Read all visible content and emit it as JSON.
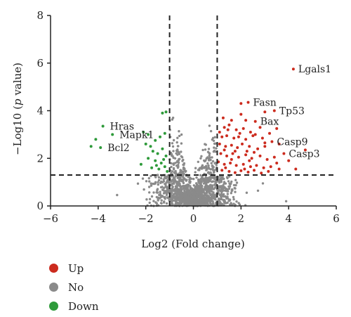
{
  "chart_data": {
    "type": "scatter",
    "title": "",
    "xlabel": "Log2 (Fold change)",
    "ylabel_parts": [
      "−Log10 (",
      "p",
      " value)"
    ],
    "xlim": [
      -6,
      6
    ],
    "ylim": [
      0,
      8
    ],
    "xticks": [
      -6,
      -4,
      -2,
      0,
      2,
      4,
      6
    ],
    "yticks": [
      0,
      2,
      4,
      6,
      8
    ],
    "xtick_labels": [
      "−6",
      "−4",
      "−2",
      "0",
      "2",
      "4",
      "6"
    ],
    "ytick_labels": [
      "0",
      "2",
      "4",
      "6",
      "8"
    ],
    "thresholds": {
      "x": [
        -1,
        1
      ],
      "y": 1.3
    },
    "colors": {
      "Up": "#cc2b1e",
      "No": "#8a8a8a",
      "Down": "#2e9a3a"
    },
    "series": [
      {
        "name": "Up",
        "points": [
          [
            4.2,
            5.75
          ],
          [
            4.7,
            2.35
          ],
          [
            2.0,
            4.3
          ],
          [
            2.3,
            4.35
          ],
          [
            3.0,
            3.95
          ],
          [
            3.4,
            4.0
          ],
          [
            2.2,
            3.6
          ],
          [
            2.6,
            3.55
          ],
          [
            1.3,
            3.3
          ],
          [
            1.5,
            3.4
          ],
          [
            1.8,
            3.2
          ],
          [
            2.1,
            3.25
          ],
          [
            2.4,
            3.1
          ],
          [
            2.8,
            3.3
          ],
          [
            3.2,
            3.05
          ],
          [
            3.5,
            3.25
          ],
          [
            1.2,
            2.9
          ],
          [
            1.4,
            2.95
          ],
          [
            1.7,
            2.85
          ],
          [
            1.9,
            2.9
          ],
          [
            2.2,
            2.8
          ],
          [
            2.5,
            2.95
          ],
          [
            2.9,
            2.85
          ],
          [
            3.3,
            2.7
          ],
          [
            3.6,
            2.6
          ],
          [
            1.1,
            2.6
          ],
          [
            1.35,
            2.5
          ],
          [
            1.6,
            2.55
          ],
          [
            1.85,
            2.45
          ],
          [
            2.05,
            2.6
          ],
          [
            2.35,
            2.5
          ],
          [
            2.7,
            2.4
          ],
          [
            3.0,
            2.5
          ],
          [
            3.8,
            2.2
          ],
          [
            1.15,
            2.2
          ],
          [
            1.4,
            2.1
          ],
          [
            1.65,
            2.2
          ],
          [
            1.9,
            2.05
          ],
          [
            2.2,
            2.15
          ],
          [
            2.45,
            2.0
          ],
          [
            2.8,
            2.1
          ],
          [
            3.1,
            1.95
          ],
          [
            3.4,
            2.05
          ],
          [
            4.0,
            1.9
          ],
          [
            1.05,
            1.85
          ],
          [
            1.3,
            1.75
          ],
          [
            1.55,
            1.8
          ],
          [
            1.8,
            1.7
          ],
          [
            2.1,
            1.75
          ],
          [
            2.4,
            1.65
          ],
          [
            2.65,
            1.7
          ],
          [
            2.95,
            1.6
          ],
          [
            3.25,
            1.65
          ],
          [
            3.6,
            1.55
          ],
          [
            1.2,
            1.5
          ],
          [
            1.5,
            1.45
          ],
          [
            1.75,
            1.4
          ],
          [
            2.0,
            1.48
          ],
          [
            2.3,
            1.42
          ],
          [
            2.55,
            1.5
          ],
          [
            2.85,
            1.38
          ],
          [
            3.15,
            1.45
          ],
          [
            1.25,
            3.7
          ],
          [
            1.6,
            3.6
          ],
          [
            2.0,
            3.85
          ],
          [
            1.1,
            3.1
          ],
          [
            1.45,
            3.2
          ],
          [
            1.95,
            3.05
          ],
          [
            2.6,
            3.0
          ],
          [
            3.0,
            2.65
          ],
          [
            1.3,
            2.35
          ],
          [
            1.75,
            2.3
          ],
          [
            2.25,
            2.3
          ],
          [
            2.55,
            2.25
          ],
          [
            1.6,
            1.95
          ],
          [
            2.35,
            1.9
          ],
          [
            1.35,
            1.6
          ],
          [
            2.15,
            1.55
          ],
          [
            3.5,
            1.8
          ],
          [
            4.3,
            1.55
          ]
        ]
      },
      {
        "name": "Down",
        "points": [
          [
            -4.1,
            2.8
          ],
          [
            -3.8,
            3.35
          ],
          [
            -4.3,
            2.5
          ],
          [
            -3.9,
            2.45
          ],
          [
            -3.4,
            3.0
          ],
          [
            -1.3,
            3.9
          ],
          [
            -1.15,
            3.95
          ],
          [
            -2.1,
            3.1
          ],
          [
            -1.9,
            3.0
          ],
          [
            -2.0,
            2.6
          ],
          [
            -1.8,
            2.5
          ],
          [
            -1.6,
            2.75
          ],
          [
            -1.4,
            2.9
          ],
          [
            -1.2,
            3.05
          ],
          [
            -1.7,
            2.3
          ],
          [
            -1.5,
            2.2
          ],
          [
            -1.3,
            2.4
          ],
          [
            -1.15,
            2.1
          ],
          [
            -1.9,
            2.0
          ],
          [
            -1.6,
            1.9
          ],
          [
            -1.35,
            1.8
          ],
          [
            -1.2,
            1.65
          ],
          [
            -1.75,
            1.6
          ],
          [
            -1.45,
            1.55
          ],
          [
            -2.2,
            1.75
          ],
          [
            -1.1,
            1.45
          ],
          [
            -1.55,
            1.7
          ],
          [
            -1.25,
            1.95
          ]
        ]
      }
    ],
    "labeled_genes": [
      {
        "name": "Lgals1",
        "x": 4.2,
        "y": 5.75
      },
      {
        "name": "Fasn",
        "x": 2.3,
        "y": 4.35
      },
      {
        "name": "Tp53",
        "x": 3.4,
        "y": 4.0
      },
      {
        "name": "Bax",
        "x": 2.6,
        "y": 3.55
      },
      {
        "name": "Casp9",
        "x": 3.3,
        "y": 2.7
      },
      {
        "name": "Casp3",
        "x": 3.8,
        "y": 2.2
      },
      {
        "name": "Hras",
        "x": -3.8,
        "y": 3.35
      },
      {
        "name": "Mapk1",
        "x": -3.4,
        "y": 3.0
      },
      {
        "name": "Bcl2",
        "x": -3.9,
        "y": 2.45
      }
    ],
    "legend": [
      "Up",
      "No",
      "Down"
    ],
    "legend_position": "bottom-left"
  }
}
